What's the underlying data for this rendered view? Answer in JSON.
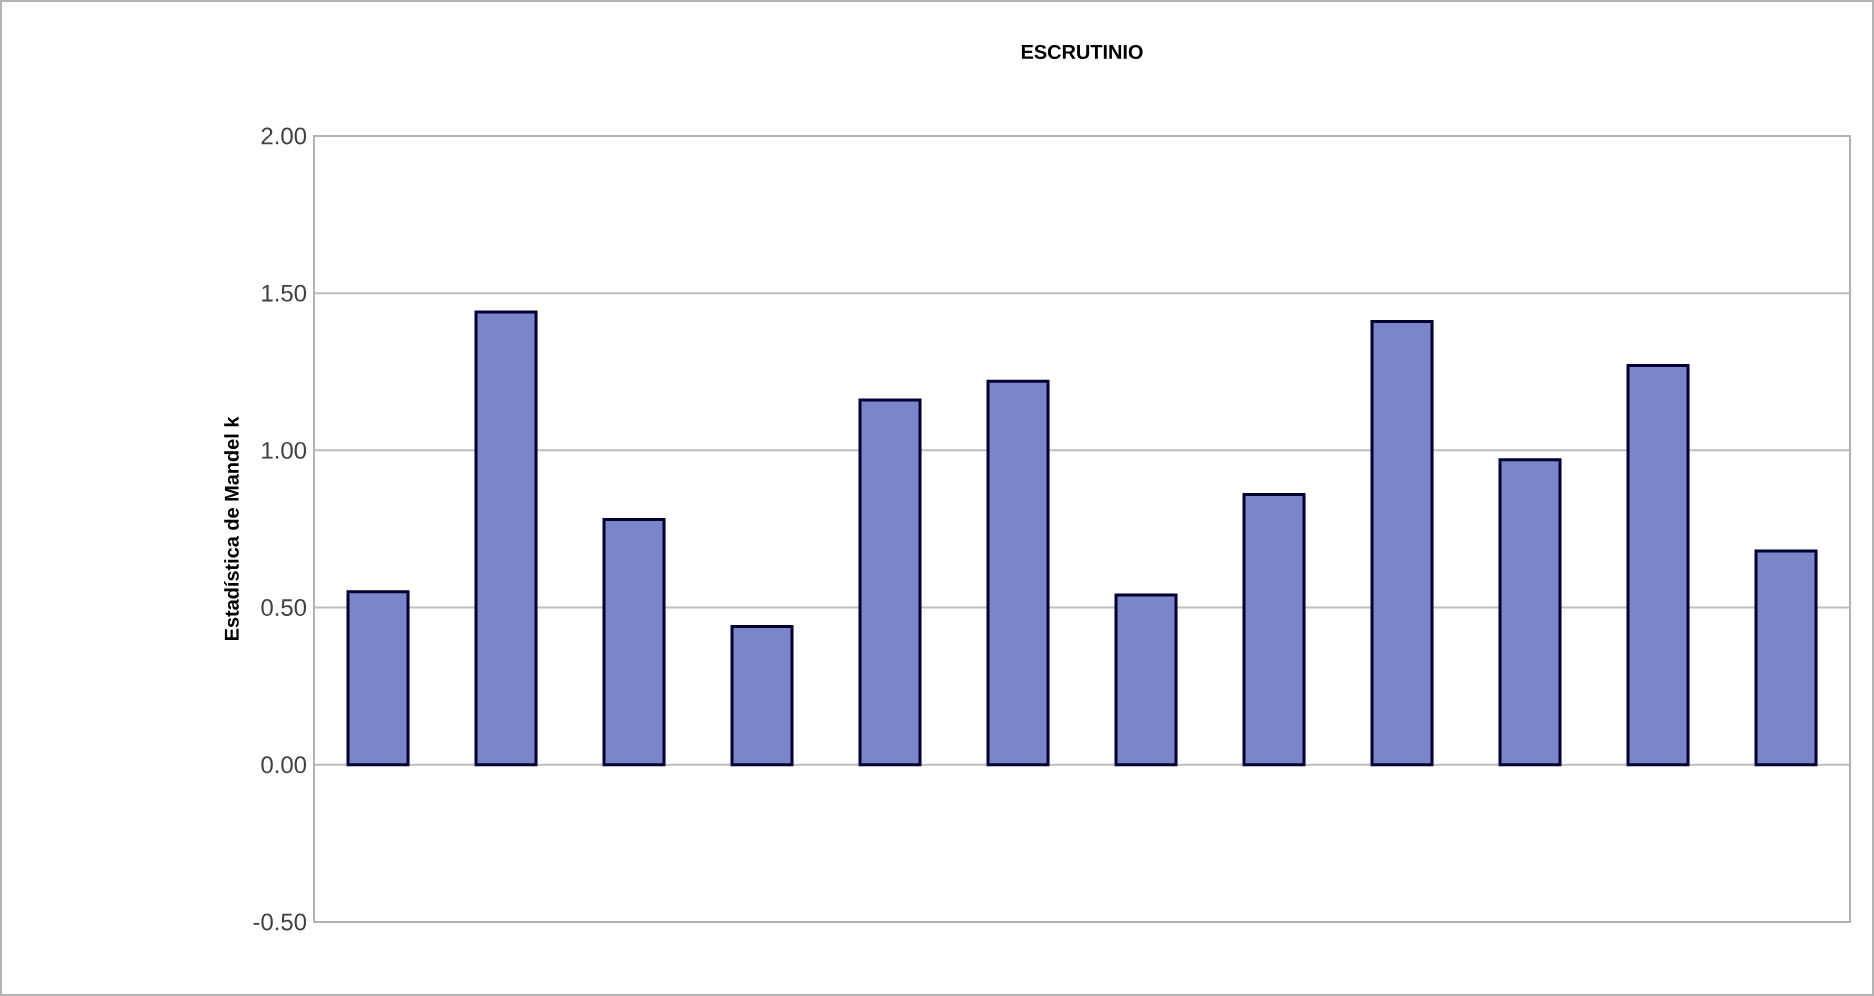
{
  "chart_data": {
    "type": "bar",
    "title": "ESCRUTINIO",
    "ylabel": "Estadística de Mandel k",
    "categories": [
      null,
      null,
      null,
      null,
      null,
      null,
      null,
      null,
      null,
      null,
      null,
      null
    ],
    "values": [
      0.55,
      1.44,
      0.78,
      0.44,
      1.16,
      1.22,
      0.54,
      0.86,
      1.41,
      0.97,
      1.27,
      0.68
    ],
    "color": "#7b86c8",
    "ylim": [
      -0.5,
      2.0
    ],
    "yticks": [
      {
        "value": -0.5,
        "label": "-0.50"
      },
      {
        "value": 0,
        "label": "0.00"
      },
      {
        "value": 0.5,
        "label": "0.50"
      },
      {
        "value": 1.0,
        "label": "1.00"
      },
      {
        "value": 1.5,
        "label": "1.50"
      },
      {
        "value": 2.0,
        "label": "2.00"
      }
    ],
    "grid": "y"
  }
}
